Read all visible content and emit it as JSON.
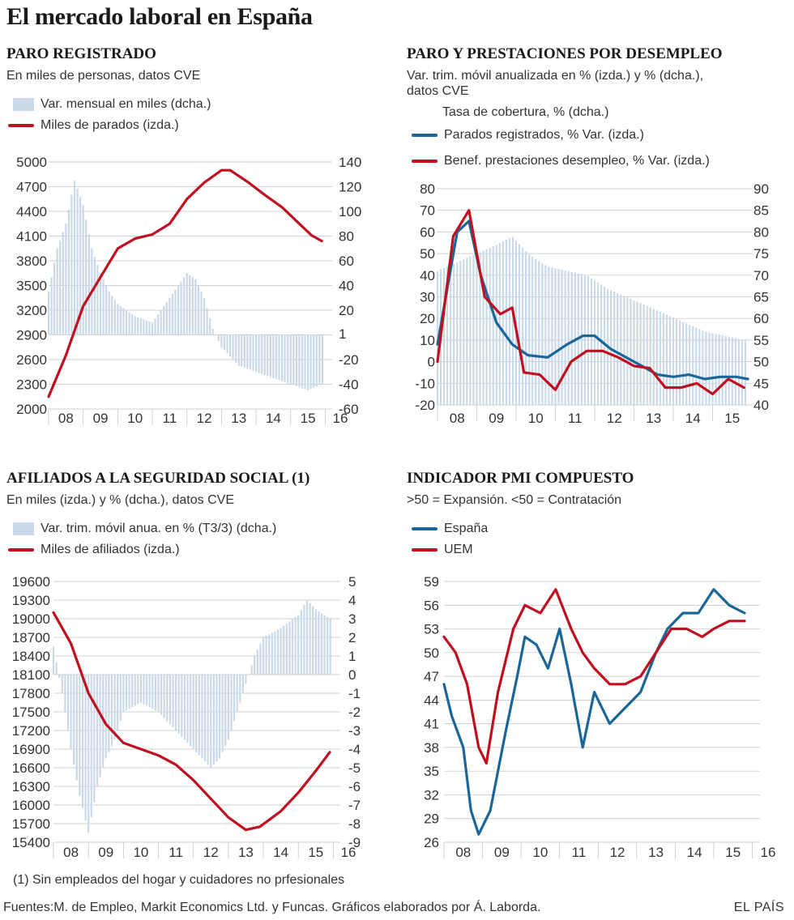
{
  "title": "El mercado laboral en España",
  "footnote": "(1) Sin empleados del hogar y cuidadores no prfesionales",
  "sources": "Fuentes:M. de Empleo, Markit Economics Ltd. y Funcas.  Gráficos elaborados por Á. Laborda.",
  "brand": "EL PAÍS",
  "colors": {
    "red": "#c0101f",
    "blue": "#1a6699",
    "bars": "#c9d9e8",
    "grid": "#bfbfbf"
  },
  "panels": {
    "paro": {
      "title": "PARO REGISTRADO",
      "subtitle": "En miles de personas, datos CVE",
      "legend_bars": "Var. mensual en miles (dcha.)",
      "legend_line": "Miles de parados (izda.)"
    },
    "prestaciones": {
      "title": "PARO Y PRESTACIONES POR DESEMPLEO",
      "subtitle1": "Var. trim. móvil anualizada en % (izda.)  y % (dcha.),",
      "subtitle2": "datos CVE",
      "legend_bars": "Tasa de cobertura, % (dcha.)",
      "legend_blue": "Parados registrados, % Var. (izda.)",
      "legend_red": "Benef. prestaciones desempleo, % Var. (izda.)"
    },
    "afiliados": {
      "title": "AFILIADOS A LA SEGURIDAD SOCIAL (1)",
      "subtitle": "En miles (izda.) y % (dcha.), datos CVE",
      "legend_bars": "Var. trim. móvil anua. en % (T3/3) (dcha.)",
      "legend_line": "Miles de afiliados (izda.)"
    },
    "pmi": {
      "title": "INDICADOR PMI COMPUESTO",
      "subtitle": ">50 = Expansión. <50 = Contratación",
      "legend_blue": "España",
      "legend_red": "UEM"
    }
  },
  "chart_data": [
    {
      "id": "paro",
      "type": "bar+line",
      "title": "PARO REGISTRADO",
      "x_labels": [
        "08",
        "09",
        "10",
        "11",
        "12",
        "13",
        "14",
        "15",
        "16"
      ],
      "left_axis": {
        "ticks": [
          5000,
          4700,
          4400,
          4100,
          3800,
          3500,
          3200,
          2900,
          2600,
          2300,
          2000
        ],
        "ylim": [
          2000,
          5000
        ]
      },
      "right_axis": {
        "ticks": [
          140,
          120,
          100,
          80,
          60,
          40,
          20,
          1,
          -20,
          -40,
          -60
        ],
        "ylim": [
          -60,
          140
        ]
      },
      "series": [
        {
          "name": "Var. mensual en miles (dcha.)",
          "kind": "bars",
          "axis": "right",
          "points": [
            [
              2008.0,
              35
            ],
            [
              2008.25,
              70
            ],
            [
              2008.5,
              90
            ],
            [
              2008.75,
              125
            ],
            [
              2009.0,
              105
            ],
            [
              2009.25,
              70
            ],
            [
              2009.5,
              50
            ],
            [
              2009.75,
              35
            ],
            [
              2010.0,
              25
            ],
            [
              2010.5,
              15
            ],
            [
              2011.0,
              10
            ],
            [
              2011.5,
              30
            ],
            [
              2012.0,
              50
            ],
            [
              2012.25,
              45
            ],
            [
              2012.5,
              30
            ],
            [
              2012.75,
              5
            ],
            [
              2013.0,
              -10
            ],
            [
              2013.5,
              -25
            ],
            [
              2014.0,
              -30
            ],
            [
              2014.5,
              -35
            ],
            [
              2015.0,
              -40
            ],
            [
              2015.5,
              -45
            ],
            [
              2015.9,
              -40
            ]
          ]
        },
        {
          "name": "Miles de parados (izda.)",
          "kind": "line",
          "axis": "left",
          "points": [
            [
              2008.0,
              2150
            ],
            [
              2008.5,
              2650
            ],
            [
              2009.0,
              3250
            ],
            [
              2009.5,
              3600
            ],
            [
              2010.0,
              3950
            ],
            [
              2010.5,
              4070
            ],
            [
              2011.0,
              4120
            ],
            [
              2011.5,
              4250
            ],
            [
              2012.0,
              4550
            ],
            [
              2012.5,
              4750
            ],
            [
              2013.0,
              4900
            ],
            [
              2013.25,
              4900
            ],
            [
              2013.75,
              4760
            ],
            [
              2014.25,
              4600
            ],
            [
              2014.75,
              4450
            ],
            [
              2015.25,
              4250
            ],
            [
              2015.6,
              4110
            ],
            [
              2015.9,
              4040
            ]
          ]
        }
      ]
    },
    {
      "id": "prestaciones",
      "type": "bar+line",
      "title": "PARO Y PRESTACIONES POR DESEMPLEO",
      "x_labels": [
        "08",
        "09",
        "10",
        "11",
        "12",
        "13",
        "14",
        "15"
      ],
      "left_axis": {
        "ticks": [
          80,
          70,
          60,
          50,
          40,
          30,
          20,
          10,
          0,
          -10,
          -20
        ],
        "ylim": [
          -20,
          80
        ]
      },
      "right_axis": {
        "ticks": [
          90,
          85,
          80,
          75,
          70,
          65,
          60,
          55,
          50,
          45,
          40
        ],
        "ylim": [
          40,
          90
        ]
      },
      "series": [
        {
          "name": "Tasa de cobertura, % (dcha.)",
          "kind": "bars",
          "axis": "right",
          "points": [
            [
              2008.0,
              71
            ],
            [
              2008.5,
              73
            ],
            [
              2009.0,
              75
            ],
            [
              2009.5,
              77
            ],
            [
              2009.9,
              79
            ],
            [
              2010.3,
              75
            ],
            [
              2010.8,
              72
            ],
            [
              2011.3,
              71
            ],
            [
              2011.8,
              70
            ],
            [
              2012.3,
              67
            ],
            [
              2012.8,
              65
            ],
            [
              2013.3,
              63
            ],
            [
              2013.8,
              61
            ],
            [
              2014.3,
              59
            ],
            [
              2014.8,
              57
            ],
            [
              2015.3,
              56
            ],
            [
              2015.8,
              55
            ]
          ]
        },
        {
          "name": "Parados registrados, % Var. (izda.)",
          "kind": "line",
          "axis": "left",
          "points": [
            [
              2008.0,
              8
            ],
            [
              2008.5,
              60
            ],
            [
              2008.8,
              65
            ],
            [
              2009.1,
              40
            ],
            [
              2009.5,
              18
            ],
            [
              2009.9,
              8
            ],
            [
              2010.3,
              3
            ],
            [
              2010.8,
              2
            ],
            [
              2011.3,
              8
            ],
            [
              2011.7,
              12
            ],
            [
              2012.0,
              12
            ],
            [
              2012.4,
              6
            ],
            [
              2012.8,
              2
            ],
            [
              2013.2,
              -2
            ],
            [
              2013.6,
              -6
            ],
            [
              2014.0,
              -7
            ],
            [
              2014.4,
              -6
            ],
            [
              2014.8,
              -8
            ],
            [
              2015.2,
              -7
            ],
            [
              2015.6,
              -7
            ],
            [
              2015.9,
              -8
            ]
          ]
        },
        {
          "name": "Benef. prestaciones desempleo, % Var. (izda.)",
          "kind": "line",
          "axis": "left",
          "points": [
            [
              2008.0,
              0
            ],
            [
              2008.4,
              58
            ],
            [
              2008.8,
              70
            ],
            [
              2009.2,
              30
            ],
            [
              2009.6,
              22
            ],
            [
              2009.9,
              25
            ],
            [
              2010.2,
              -5
            ],
            [
              2010.6,
              -6
            ],
            [
              2011.0,
              -13
            ],
            [
              2011.4,
              0
            ],
            [
              2011.8,
              5
            ],
            [
              2012.2,
              5
            ],
            [
              2012.6,
              2
            ],
            [
              2013.0,
              -2
            ],
            [
              2013.4,
              -3
            ],
            [
              2013.8,
              -12
            ],
            [
              2014.2,
              -12
            ],
            [
              2014.6,
              -10
            ],
            [
              2015.0,
              -15
            ],
            [
              2015.4,
              -8
            ],
            [
              2015.8,
              -12
            ]
          ]
        }
      ]
    },
    {
      "id": "afiliados",
      "type": "bar+line",
      "title": "AFILIADOS A LA SEGURIDAD SOCIAL (1)",
      "x_labels": [
        "08",
        "09",
        "10",
        "11",
        "12",
        "13",
        "14",
        "15",
        "16"
      ],
      "left_axis": {
        "ticks": [
          19600,
          19300,
          19000,
          18700,
          18400,
          18100,
          17800,
          17500,
          17200,
          16900,
          16600,
          16300,
          16000,
          15700,
          15400
        ],
        "ylim": [
          15400,
          19600
        ]
      },
      "right_axis": {
        "ticks": [
          5,
          4,
          3,
          2,
          1,
          0,
          -1,
          -2,
          -3,
          -4,
          -5,
          -6,
          -7,
          -8,
          -9
        ],
        "ylim": [
          -9,
          5
        ]
      },
      "series": [
        {
          "name": "Var. trim. móvil anua. en % (T3/3) (dcha.)",
          "kind": "bars",
          "axis": "right",
          "points": [
            [
              2008.0,
              1.5
            ],
            [
              2008.25,
              -1
            ],
            [
              2008.5,
              -4
            ],
            [
              2008.75,
              -6.5
            ],
            [
              2009.0,
              -8.5
            ],
            [
              2009.25,
              -6
            ],
            [
              2009.5,
              -4.5
            ],
            [
              2009.75,
              -3.5
            ],
            [
              2010.0,
              -2
            ],
            [
              2010.5,
              -1.5
            ],
            [
              2011.0,
              -2
            ],
            [
              2011.5,
              -3
            ],
            [
              2012.0,
              -4
            ],
            [
              2012.5,
              -5
            ],
            [
              2012.75,
              -4.5
            ],
            [
              2013.0,
              -3.5
            ],
            [
              2013.5,
              -0.5
            ],
            [
              2013.75,
              1
            ],
            [
              2014.0,
              2
            ],
            [
              2014.5,
              2.5
            ],
            [
              2015.0,
              3.2
            ],
            [
              2015.25,
              4
            ],
            [
              2015.5,
              3.5
            ],
            [
              2015.9,
              3
            ]
          ]
        },
        {
          "name": "Miles de afiliados (izda.)",
          "kind": "line",
          "axis": "left",
          "points": [
            [
              2008.0,
              19100
            ],
            [
              2008.5,
              18600
            ],
            [
              2009.0,
              17800
            ],
            [
              2009.5,
              17300
            ],
            [
              2010.0,
              17000
            ],
            [
              2010.5,
              16900
            ],
            [
              2011.0,
              16800
            ],
            [
              2011.5,
              16650
            ],
            [
              2012.0,
              16400
            ],
            [
              2012.5,
              16100
            ],
            [
              2013.0,
              15800
            ],
            [
              2013.5,
              15600
            ],
            [
              2013.9,
              15650
            ],
            [
              2014.5,
              15900
            ],
            [
              2015.0,
              16200
            ],
            [
              2015.5,
              16550
            ],
            [
              2015.9,
              16850
            ]
          ]
        }
      ]
    },
    {
      "id": "pmi",
      "type": "line",
      "title": "INDICADOR PMI COMPUESTO",
      "x_labels": [
        "08",
        "09",
        "10",
        "11",
        "12",
        "13",
        "14",
        "15",
        "16"
      ],
      "left_axis": {
        "ticks": [
          59,
          56,
          53,
          50,
          47,
          44,
          41,
          38,
          35,
          32,
          29,
          26
        ],
        "ylim": [
          26,
          59
        ]
      },
      "series": [
        {
          "name": "España",
          "kind": "line",
          "axis": "left",
          "points": [
            [
              2008.0,
              46
            ],
            [
              2008.2,
              42
            ],
            [
              2008.5,
              38
            ],
            [
              2008.7,
              30
            ],
            [
              2008.9,
              27
            ],
            [
              2009.2,
              30
            ],
            [
              2009.6,
              40
            ],
            [
              2009.9,
              47
            ],
            [
              2010.1,
              52
            ],
            [
              2010.4,
              51
            ],
            [
              2010.7,
              48
            ],
            [
              2011.0,
              53
            ],
            [
              2011.3,
              46
            ],
            [
              2011.6,
              38
            ],
            [
              2011.9,
              45
            ],
            [
              2012.3,
              41
            ],
            [
              2012.7,
              43
            ],
            [
              2013.1,
              45
            ],
            [
              2013.5,
              50
            ],
            [
              2013.8,
              53
            ],
            [
              2014.2,
              55
            ],
            [
              2014.6,
              55
            ],
            [
              2015.0,
              58
            ],
            [
              2015.4,
              56
            ],
            [
              2015.8,
              55
            ]
          ]
        },
        {
          "name": "UEM",
          "kind": "line",
          "axis": "left",
          "points": [
            [
              2008.0,
              52
            ],
            [
              2008.3,
              50
            ],
            [
              2008.6,
              46
            ],
            [
              2008.9,
              38
            ],
            [
              2009.1,
              36
            ],
            [
              2009.4,
              45
            ],
            [
              2009.8,
              53
            ],
            [
              2010.1,
              56
            ],
            [
              2010.5,
              55
            ],
            [
              2010.9,
              58
            ],
            [
              2011.3,
              53
            ],
            [
              2011.6,
              50
            ],
            [
              2011.9,
              48
            ],
            [
              2012.3,
              46
            ],
            [
              2012.7,
              46
            ],
            [
              2013.1,
              47
            ],
            [
              2013.5,
              50
            ],
            [
              2013.9,
              53
            ],
            [
              2014.3,
              53
            ],
            [
              2014.7,
              52
            ],
            [
              2015.0,
              53
            ],
            [
              2015.4,
              54
            ],
            [
              2015.8,
              54
            ]
          ]
        }
      ]
    }
  ]
}
